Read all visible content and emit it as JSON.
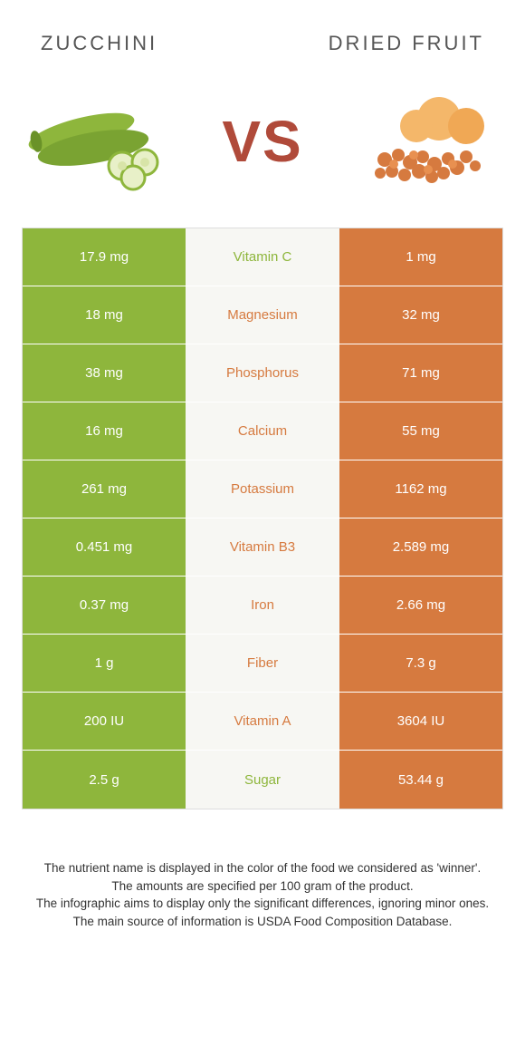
{
  "colors": {
    "left": "#8eb63c",
    "right": "#d67a3f",
    "mid_bg": "#f7f7f3",
    "winner_left": "#8eb63c",
    "winner_right": "#d67a3f"
  },
  "header": {
    "left_title": "Zucchini",
    "right_title": "Dried Fruit",
    "vs": "VS"
  },
  "rows": [
    {
      "left": "17.9 mg",
      "label": "Vitamin C",
      "right": "1 mg",
      "winner": "left"
    },
    {
      "left": "18 mg",
      "label": "Magnesium",
      "right": "32 mg",
      "winner": "right"
    },
    {
      "left": "38 mg",
      "label": "Phosphorus",
      "right": "71 mg",
      "winner": "right"
    },
    {
      "left": "16 mg",
      "label": "Calcium",
      "right": "55 mg",
      "winner": "right"
    },
    {
      "left": "261 mg",
      "label": "Potassium",
      "right": "1162 mg",
      "winner": "right"
    },
    {
      "left": "0.451 mg",
      "label": "Vitamin B3",
      "right": "2.589 mg",
      "winner": "right"
    },
    {
      "left": "0.37 mg",
      "label": "Iron",
      "right": "2.66 mg",
      "winner": "right"
    },
    {
      "left": "1 g",
      "label": "Fiber",
      "right": "7.3 g",
      "winner": "right"
    },
    {
      "left": "200 IU",
      "label": "Vitamin A",
      "right": "3604 IU",
      "winner": "right"
    },
    {
      "left": "2.5 g",
      "label": "Sugar",
      "right": "53.44 g",
      "winner": "left"
    }
  ],
  "footer": {
    "line1": "The nutrient name is displayed in the color of the food we considered as 'winner'.",
    "line2": "The amounts are specified per 100 gram of the product.",
    "line3": "The infographic aims to display only the significant differences, ignoring minor ones.",
    "line4": "The main source of information is USDA Food Composition Database."
  }
}
